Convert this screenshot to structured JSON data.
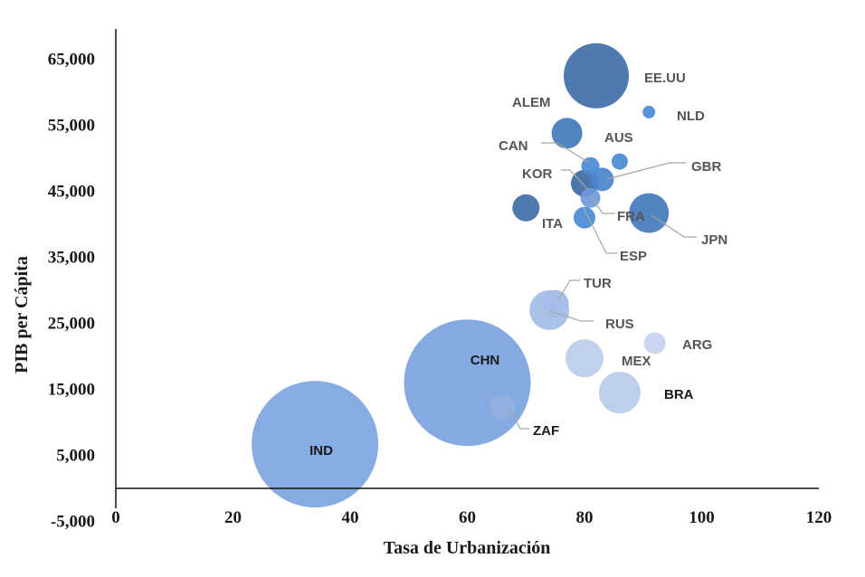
{
  "chart_data": {
    "type": "scatter",
    "title": "",
    "xlabel": "Tasa de Urbanización",
    "ylabel": "PIB per Cápita",
    "xlim": [
      0,
      120
    ],
    "ylim": [
      -5000,
      70000
    ],
    "x_ticks": [
      "0",
      "20",
      "40",
      "60",
      "80",
      "100",
      "120"
    ],
    "y_ticks": [
      "-5,000",
      "5,000",
      "15,000",
      "25,000",
      "35,000",
      "45,000",
      "55,000",
      "65,000"
    ],
    "grid": false,
    "legend": "none",
    "size_encoding": "bubble area",
    "points": [
      {
        "label": "EE.UU",
        "x": 82.0,
        "y": 62500,
        "r": 36,
        "color": "#3f6fa6"
      },
      {
        "label": "NLD",
        "x": 91.0,
        "y": 57000,
        "r": 7,
        "color": "#4a8ad4"
      },
      {
        "label": "ALEM",
        "x": 77.0,
        "y": 53800,
        "r": 17,
        "color": "#4379bd"
      },
      {
        "label": "AUS",
        "x": 86.0,
        "y": 49500,
        "r": 9,
        "color": "#4a8ad4"
      },
      {
        "label": "CAN",
        "x": 81.0,
        "y": 48800,
        "r": 10,
        "color": "#4a8ad4"
      },
      {
        "label": "GBR",
        "x": 83.0,
        "y": 46800,
        "r": 13,
        "color": "#4a84cc"
      },
      {
        "label": "KOR",
        "x": 80.0,
        "y": 46200,
        "r": 15,
        "color": "#3d6aa2"
      },
      {
        "label": "FRA",
        "x": 81.0,
        "y": 44000,
        "r": 11,
        "color": "#6d99db"
      },
      {
        "label": "ITA",
        "x": 70.0,
        "y": 42500,
        "r": 15,
        "color": "#3f6fa6"
      },
      {
        "label": "ESP",
        "x": 80.0,
        "y": 41000,
        "r": 12,
        "color": "#4a8ad4"
      },
      {
        "label": "JPN",
        "x": 91.0,
        "y": 41700,
        "r": 22,
        "color": "#4379bd"
      },
      {
        "label": "TUR",
        "x": 75.0,
        "y": 28000,
        "r": 15,
        "color": "#a4bde6"
      },
      {
        "label": "RUS",
        "x": 74.0,
        "y": 27000,
        "r": 22,
        "color": "#a4bde6"
      },
      {
        "label": "ARG",
        "x": 92.0,
        "y": 22000,
        "r": 12,
        "color": "#c3d3ee"
      },
      {
        "label": "MEX",
        "x": 80.0,
        "y": 19700,
        "r": 21,
        "color": "#bccdea"
      },
      {
        "label": "BRA",
        "x": 86.0,
        "y": 14500,
        "r": 23,
        "color": "#b9cbea"
      },
      {
        "label": "CHN",
        "x": 60.0,
        "y": 16000,
        "r": 70,
        "color": "#7ba2de"
      },
      {
        "label": "ZAF",
        "x": 66.0,
        "y": 12300,
        "r": 14,
        "color": "#92b1e0"
      },
      {
        "label": "IND",
        "x": 34.0,
        "y": 6700,
        "r": 70,
        "color": "#7ca5e0"
      }
    ]
  }
}
